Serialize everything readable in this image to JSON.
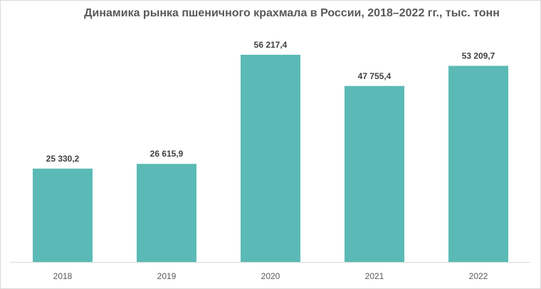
{
  "chart_data": {
    "type": "bar",
    "title": "Динамика рынка пшеничного крахмала в России, 2018–2022 гг., тыс. тонн",
    "categories": [
      "2018",
      "2019",
      "2020",
      "2021",
      "2022"
    ],
    "values": [
      25330.2,
      26615.9,
      56217.4,
      47755.4,
      53209.7
    ],
    "data_labels": [
      "25 330,2",
      "26 615,9",
      "56 217,4",
      "47 755,4",
      "53 209,7"
    ],
    "xlabel": "",
    "ylabel": "",
    "ylim": [
      0,
      62000
    ],
    "grid": false,
    "legend": "none",
    "bar_color": "#5bbab5",
    "axis_color": "#d9d9d9"
  }
}
